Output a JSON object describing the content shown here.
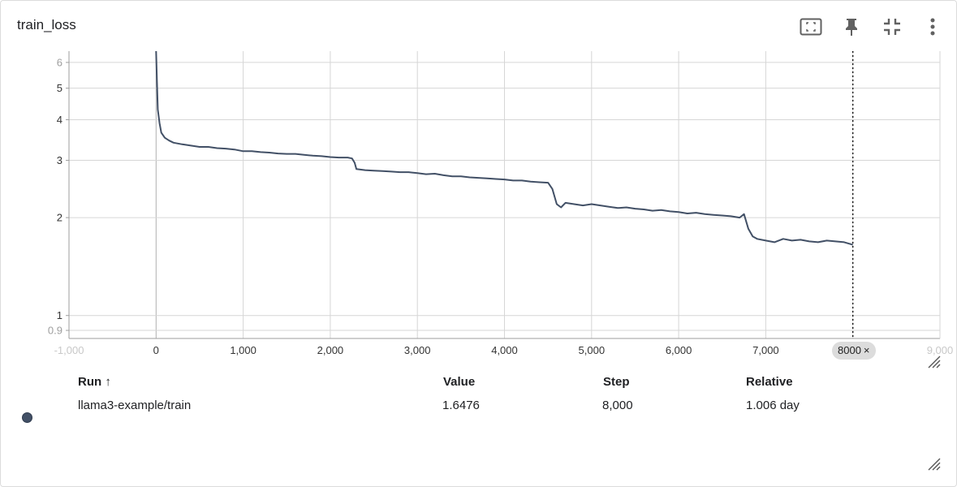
{
  "card": {
    "title": "train_loss"
  },
  "toolbar": {
    "icons": [
      "fit-to-data-icon",
      "pin-icon",
      "collapse-icon",
      "more-vert-icon"
    ]
  },
  "colors": {
    "series": "#425066",
    "grid": "#d6d6d6",
    "cursor": "#000000"
  },
  "chart_data": {
    "type": "line",
    "title": "train_loss",
    "xlabel": "",
    "ylabel": "",
    "xscale": "linear",
    "yscale": "log",
    "xlim": [
      -1000,
      9000
    ],
    "ylim": [
      0.85,
      6.5
    ],
    "grid": true,
    "x_ticks": [
      -1000,
      0,
      1000,
      2000,
      3000,
      4000,
      5000,
      6000,
      7000,
      8000,
      9000
    ],
    "x_tick_labels": [
      "-1,000",
      "0",
      "1,000",
      "2,000",
      "3,000",
      "4,000",
      "5,000",
      "6,000",
      "7,000",
      "8000",
      "9,000"
    ],
    "y_ticks": [
      0.9,
      1,
      2,
      3,
      4,
      5,
      6
    ],
    "y_tick_labels": [
      "0.9",
      "1",
      "2",
      "3",
      "4",
      "5",
      "6"
    ],
    "series": [
      {
        "name": "llama3-example/train",
        "x": [
          0,
          10,
          20,
          40,
          60,
          100,
          150,
          200,
          300,
          400,
          500,
          600,
          700,
          800,
          900,
          1000,
          1100,
          1200,
          1300,
          1400,
          1500,
          1600,
          1700,
          1800,
          1900,
          2000,
          2100,
          2200,
          2250,
          2280,
          2300,
          2400,
          2500,
          2600,
          2700,
          2800,
          2900,
          3000,
          3100,
          3200,
          3300,
          3400,
          3500,
          3600,
          3700,
          3800,
          3900,
          4000,
          4100,
          4200,
          4300,
          4400,
          4500,
          4550,
          4600,
          4650,
          4700,
          4800,
          4900,
          5000,
          5100,
          5200,
          5300,
          5400,
          5500,
          5600,
          5700,
          5800,
          5900,
          6000,
          6100,
          6200,
          6300,
          6400,
          6500,
          6600,
          6700,
          6750,
          6800,
          6850,
          6900,
          7000,
          7100,
          7200,
          7300,
          7400,
          7500,
          7600,
          7700,
          7800,
          7900,
          8000
        ],
        "y": [
          6.5,
          5.2,
          4.3,
          3.9,
          3.65,
          3.52,
          3.45,
          3.4,
          3.36,
          3.33,
          3.3,
          3.3,
          3.27,
          3.26,
          3.24,
          3.2,
          3.2,
          3.18,
          3.17,
          3.15,
          3.14,
          3.14,
          3.12,
          3.1,
          3.09,
          3.07,
          3.06,
          3.06,
          3.04,
          2.95,
          2.82,
          2.8,
          2.79,
          2.78,
          2.77,
          2.76,
          2.76,
          2.74,
          2.72,
          2.73,
          2.7,
          2.68,
          2.68,
          2.66,
          2.65,
          2.64,
          2.63,
          2.62,
          2.6,
          2.6,
          2.58,
          2.57,
          2.56,
          2.45,
          2.2,
          2.15,
          2.22,
          2.2,
          2.18,
          2.2,
          2.18,
          2.16,
          2.14,
          2.15,
          2.13,
          2.12,
          2.1,
          2.11,
          2.09,
          2.08,
          2.06,
          2.07,
          2.05,
          2.04,
          2.03,
          2.02,
          2.0,
          2.05,
          1.85,
          1.75,
          1.72,
          1.7,
          1.68,
          1.72,
          1.7,
          1.71,
          1.69,
          1.68,
          1.7,
          1.69,
          1.68,
          1.65
        ]
      }
    ],
    "cursor_step": 8000
  },
  "cursor": {
    "label": "8000",
    "close": "×"
  },
  "table": {
    "headers": {
      "run": "Run",
      "run_sort": "↑",
      "value": "Value",
      "step": "Step",
      "relative": "Relative"
    },
    "rows": [
      {
        "color": "#425066",
        "run": "llama3-example/train",
        "value": "1.6476",
        "step": "8,000",
        "relative": "1.006 day"
      }
    ]
  }
}
